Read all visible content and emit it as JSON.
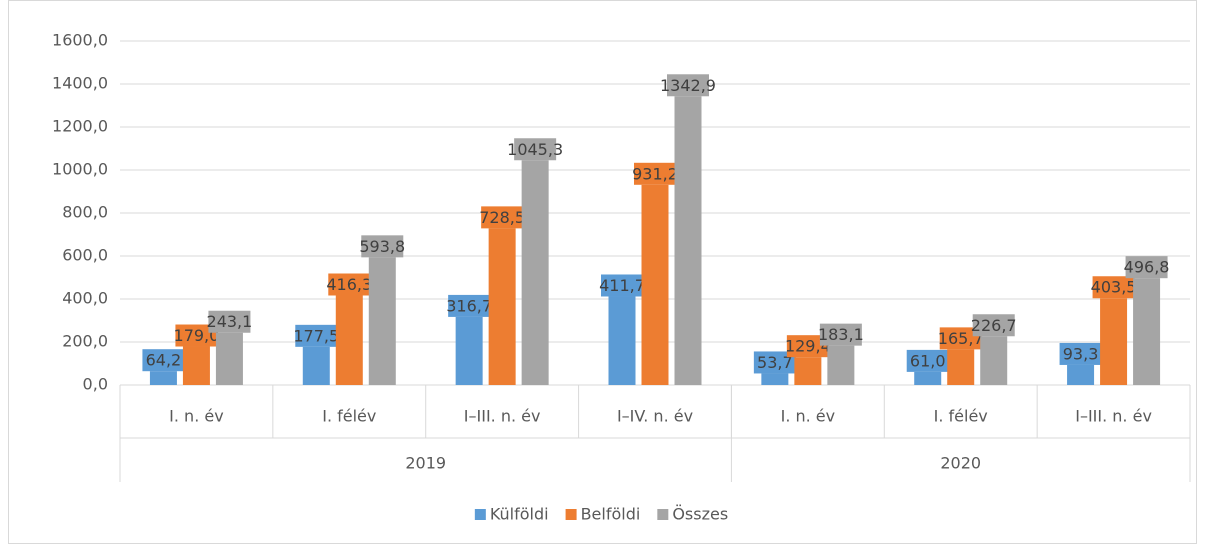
{
  "chart_data": {
    "type": "bar",
    "categories": [
      "I. n. év",
      "I. félév",
      "I–III. n. év",
      "I–IV. n. év",
      "I. n. év",
      "I. félév",
      "I–III. n. év"
    ],
    "groups": [
      {
        "name": "2019",
        "count": 4
      },
      {
        "name": "2020",
        "count": 3
      }
    ],
    "series": [
      {
        "name": "Külföldi",
        "color": "#5b9bd5",
        "values": [
          64.2,
          177.5,
          316.7,
          411.7,
          53.7,
          61.0,
          93.3
        ],
        "value_labels": [
          "64,2",
          "177,5",
          "316,7",
          "411,7",
          "53,7",
          "61,0",
          "93,3"
        ]
      },
      {
        "name": "Belföldi",
        "color": "#ed7d31",
        "values": [
          179.0,
          416.3,
          728.5,
          931.2,
          129.4,
          165.7,
          403.5
        ],
        "value_labels": [
          "179,0",
          "416,3",
          "728,5",
          "931,2",
          "129,4",
          "165,7",
          "403,5"
        ]
      },
      {
        "name": "Összes",
        "color": "#a5a5a5",
        "values": [
          243.1,
          593.8,
          1045.3,
          1342.9,
          183.1,
          226.7,
          496.8
        ],
        "value_labels": [
          "243,1",
          "593,8",
          "1045,3",
          "1342,9",
          "183,1",
          "226,7",
          "496,8"
        ]
      }
    ],
    "ylim": [
      0,
      1600
    ],
    "yticks": [
      {
        "value": 0,
        "label": "0,0"
      },
      {
        "value": 200,
        "label": "200,0"
      },
      {
        "value": 400,
        "label": "400,0"
      },
      {
        "value": 600,
        "label": "600,0"
      },
      {
        "value": 800,
        "label": "800,0"
      },
      {
        "value": 1000,
        "label": "1000,0"
      },
      {
        "value": 1200,
        "label": "1200,0"
      },
      {
        "value": 1400,
        "label": "1400,0"
      },
      {
        "value": 1600,
        "label": "1600,0"
      }
    ],
    "grid": true,
    "legend": "bottom"
  }
}
